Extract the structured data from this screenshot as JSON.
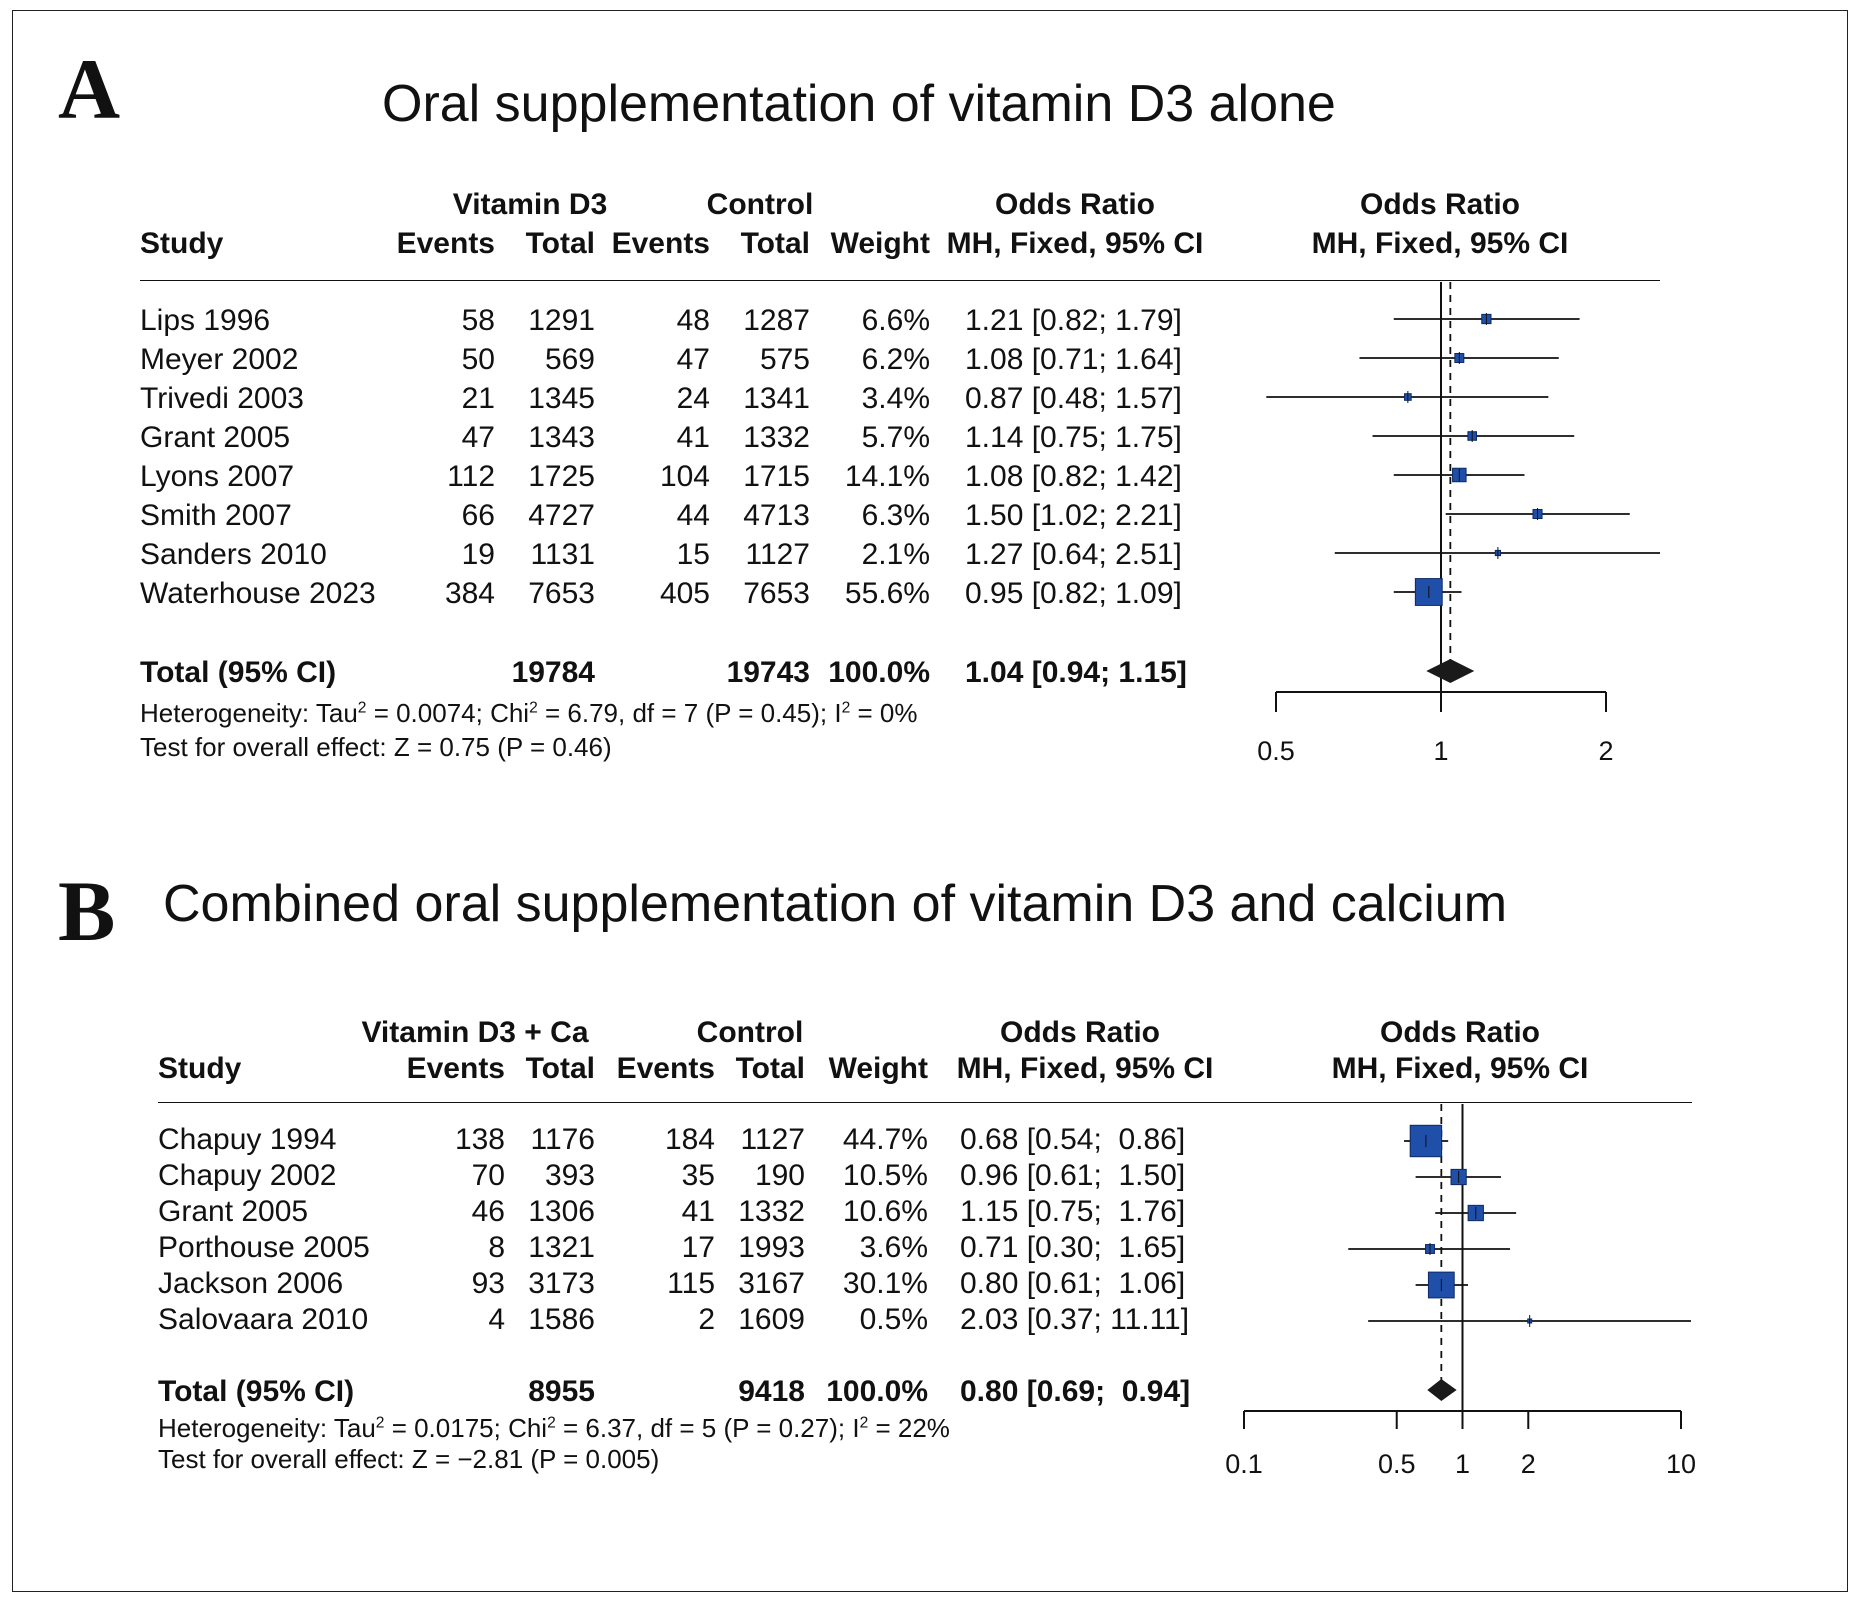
{
  "panels": [
    {
      "letter": "A",
      "title": "Oral supplementation of vitamin D3 alone",
      "headers": {
        "group1": "Vitamin D3",
        "group2": "Control",
        "or_text": "Odds Ratio",
        "or_plot": "Odds Ratio",
        "study": "Study",
        "events1": "Events",
        "total1": "Total",
        "events2": "Events",
        "total2": "Total",
        "weight": "Weight",
        "method_text": "MH, Fixed, 95% CI",
        "method_plot": "MH, Fixed, 95% CI"
      },
      "studies": [
        {
          "name": "Lips 1996",
          "e1": "58",
          "t1": "1291",
          "e2": "48",
          "t2": "1287",
          "weight": "6.6%",
          "ci_text": "1.21 [0.82; 1.79]"
        },
        {
          "name": "Meyer 2002",
          "e1": "50",
          "t1": "569",
          "e2": "47",
          "t2": "575",
          "weight": "6.2%",
          "ci_text": "1.08 [0.71; 1.64]"
        },
        {
          "name": "Trivedi 2003",
          "e1": "21",
          "t1": "1345",
          "e2": "24",
          "t2": "1341",
          "weight": "3.4%",
          "ci_text": "0.87 [0.48; 1.57]"
        },
        {
          "name": "Grant 2005",
          "e1": "47",
          "t1": "1343",
          "e2": "41",
          "t2": "1332",
          "weight": "5.7%",
          "ci_text": "1.14 [0.75; 1.75]"
        },
        {
          "name": "Lyons 2007",
          "e1": "112",
          "t1": "1725",
          "e2": "104",
          "t2": "1715",
          "weight": "14.1%",
          "ci_text": "1.08 [0.82; 1.42]"
        },
        {
          "name": "Smith 2007",
          "e1": "66",
          "t1": "4727",
          "e2": "44",
          "t2": "4713",
          "weight": "6.3%",
          "ci_text": "1.50 [1.02; 2.21]"
        },
        {
          "name": "Sanders 2010",
          "e1": "19",
          "t1": "1131",
          "e2": "15",
          "t2": "1127",
          "weight": "2.1%",
          "ci_text": "1.27 [0.64; 2.51]"
        },
        {
          "name": "Waterhouse 2023",
          "e1": "384",
          "t1": "7653",
          "e2": "405",
          "t2": "7653",
          "weight": "55.6%",
          "ci_text": "0.95 [0.82; 1.09]"
        }
      ],
      "total": {
        "label": "Total (95% CI)",
        "t1": "19784",
        "t2": "19743",
        "weight": "100.0%",
        "ci_text": "1.04 [0.94; 1.15]"
      },
      "heterogeneity": {
        "prefix": "Heterogeneity: Tau",
        "tau2": "2",
        "mid": " = 0.0074; Chi",
        "chi2": "2",
        "mid2": " = 6.79, df = 7 (P = 0.45); I",
        "i2": "2",
        "end": " = 0%"
      },
      "overall_effect": "Test for overall effect: Z = 0.75 (P = 0.46)"
    },
    {
      "letter": "B",
      "title": "Combined oral supplementation of vitamin D3 and calcium",
      "headers": {
        "group1": "Vitamin D3 + Ca",
        "group2": "Control",
        "or_text": "Odds Ratio",
        "or_plot": "Odds Ratio",
        "study": "Study",
        "events1": "Events",
        "total1": "Total",
        "events2": "Events",
        "total2": "Total",
        "weight": "Weight",
        "method_text": "MH, Fixed, 95% CI",
        "method_plot": "MH, Fixed, 95% CI"
      },
      "studies": [
        {
          "name": "Chapuy 1994",
          "e1": "138",
          "t1": "1176",
          "e2": "184",
          "t2": "1127",
          "weight": "44.7%",
          "ci_text": "0.68 [0.54;  0.86]"
        },
        {
          "name": "Chapuy 2002",
          "e1": "70",
          "t1": "393",
          "e2": "35",
          "t2": "190",
          "weight": "10.5%",
          "ci_text": "0.96 [0.61;  1.50]"
        },
        {
          "name": "Grant 2005",
          "e1": "46",
          "t1": "1306",
          "e2": "41",
          "t2": "1332",
          "weight": "10.6%",
          "ci_text": "1.15 [0.75;  1.76]"
        },
        {
          "name": "Porthouse 2005",
          "e1": "8",
          "t1": "1321",
          "e2": "17",
          "t2": "1993",
          "weight": "3.6%",
          "ci_text": "0.71 [0.30;  1.65]"
        },
        {
          "name": "Jackson 2006",
          "e1": "93",
          "t1": "3173",
          "e2": "115",
          "t2": "3167",
          "weight": "30.1%",
          "ci_text": "0.80 [0.61;  1.06]"
        },
        {
          "name": "Salovaara 2010",
          "e1": "4",
          "t1": "1586",
          "e2": "2",
          "t2": "1609",
          "weight": "0.5%",
          "ci_text": "2.03 [0.37; 11.11]"
        }
      ],
      "total": {
        "label": "Total (95% CI)",
        "t1": "8955",
        "t2": "9418",
        "weight": "100.0%",
        "ci_text": "0.80 [0.69;  0.94]"
      },
      "heterogeneity": {
        "prefix": "Heterogeneity: Tau",
        "tau2": "2",
        "mid": " = 0.0175; Chi",
        "chi2": "2",
        "mid2": " = 6.37, df = 5 (P = 0.27); I",
        "i2": "2",
        "end": " = 22%"
      },
      "overall_effect": "Test for overall effect: Z = −2.81 (P = 0.005)"
    }
  ],
  "chart_data": [
    {
      "type": "forest",
      "scale": "log",
      "xlim": [
        0.5,
        2
      ],
      "ticks": [
        0.5,
        1,
        2
      ],
      "tick_labels": [
        "0.5",
        "1",
        "2"
      ],
      "reference_line": 1,
      "pooled_line": 1.04,
      "marker_color": "#1f4fa8",
      "points": [
        {
          "or": 1.21,
          "lo": 0.82,
          "hi": 1.79,
          "weight": 6.6
        },
        {
          "or": 1.08,
          "lo": 0.71,
          "hi": 1.64,
          "weight": 6.2
        },
        {
          "or": 0.87,
          "lo": 0.48,
          "hi": 1.57,
          "weight": 3.4
        },
        {
          "or": 1.14,
          "lo": 0.75,
          "hi": 1.75,
          "weight": 5.7
        },
        {
          "or": 1.08,
          "lo": 0.82,
          "hi": 1.42,
          "weight": 14.1
        },
        {
          "or": 1.5,
          "lo": 1.02,
          "hi": 2.21,
          "weight": 6.3
        },
        {
          "or": 1.27,
          "lo": 0.64,
          "hi": 2.51,
          "weight": 2.1
        },
        {
          "or": 0.95,
          "lo": 0.82,
          "hi": 1.09,
          "weight": 55.6
        }
      ],
      "pooled": {
        "or": 1.04,
        "lo": 0.94,
        "hi": 1.15
      }
    },
    {
      "type": "forest",
      "scale": "log",
      "xlim": [
        0.1,
        10
      ],
      "ticks": [
        0.1,
        0.5,
        1,
        2,
        10
      ],
      "tick_labels": [
        "0.1",
        "0.5",
        "1",
        "2",
        "10"
      ],
      "reference_line": 1,
      "pooled_line": 0.8,
      "marker_color": "#1f4fa8",
      "points": [
        {
          "or": 0.68,
          "lo": 0.54,
          "hi": 0.86,
          "weight": 44.7
        },
        {
          "or": 0.96,
          "lo": 0.61,
          "hi": 1.5,
          "weight": 10.5
        },
        {
          "or": 1.15,
          "lo": 0.75,
          "hi": 1.76,
          "weight": 10.6
        },
        {
          "or": 0.71,
          "lo": 0.3,
          "hi": 1.65,
          "weight": 3.6
        },
        {
          "or": 0.8,
          "lo": 0.61,
          "hi": 1.06,
          "weight": 30.1
        },
        {
          "or": 2.03,
          "lo": 0.37,
          "hi": 11.11,
          "weight": 0.5
        }
      ],
      "pooled": {
        "or": 0.8,
        "lo": 0.69,
        "hi": 0.94
      }
    }
  ]
}
